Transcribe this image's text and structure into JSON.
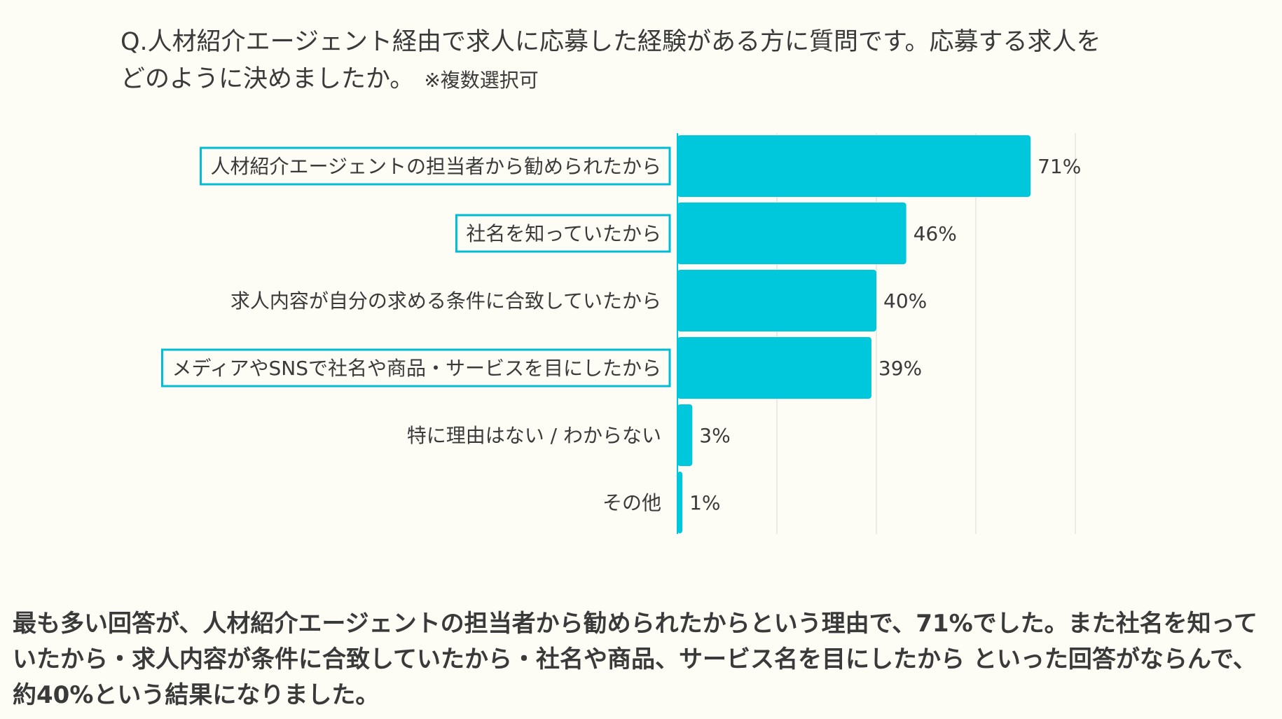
{
  "question": {
    "line1": "Q.人材紹介エージェント経由で求人に応募した経験がある方に質問です。応募する求人を",
    "line2": "どのように決めましたか。",
    "note": "※複数選択可"
  },
  "chart_data": {
    "type": "bar",
    "orientation": "horizontal",
    "categories": [
      "人材紹介エージェントの担当者から勧められたから",
      "社名を知っていたから",
      "求人内容が自分の求める条件に合致していたから",
      "メディアやSNSで社名や商品・サービスを目にしたから",
      "特に理由はない / わからない",
      "その他"
    ],
    "values": [
      71,
      46,
      40,
      39,
      3,
      1
    ],
    "value_labels": [
      "71%",
      "46%",
      "40%",
      "39%",
      "3%",
      "1%"
    ],
    "highlighted": [
      true,
      true,
      false,
      true,
      false,
      false
    ],
    "xlim": [
      0,
      80
    ],
    "grid": true,
    "bar_color": "#00c8dc",
    "highlight_color": "#00bcd4",
    "grid_color": "#e3e3e3"
  },
  "summary": {
    "text": "最も多い回答が、人材紹介エージェントの担当者から勧められたからという理由で、71%でした。また社名を知っていたから・求人内容が条件に合致していたから・社名や商品、サービス名を目にしたから といった回答がならんで、約40%という結果になりました。"
  }
}
